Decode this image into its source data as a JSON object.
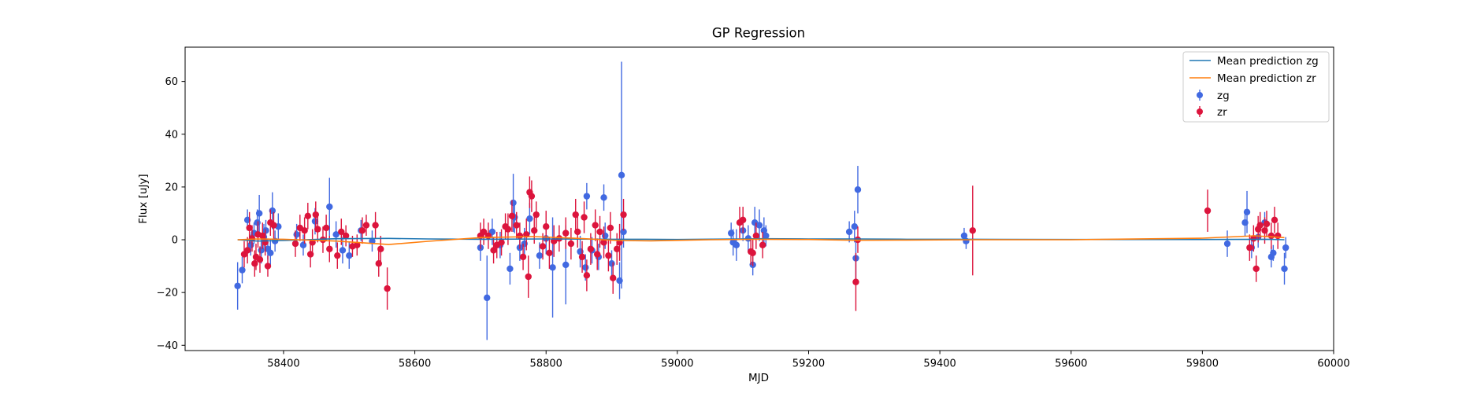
{
  "chart_data": {
    "type": "scatter",
    "title": "GP Regression",
    "xlabel": "MJD",
    "ylabel": "Flux [uJy]",
    "xlim": [
      58250,
      60000
    ],
    "ylim": [
      -42,
      73
    ],
    "xticks": [
      58400,
      58600,
      58800,
      59000,
      59200,
      59400,
      59600,
      59800,
      60000
    ],
    "xtick_labels": [
      "58400",
      "58600",
      "58800",
      "59000",
      "59200",
      "59400",
      "59600",
      "59800",
      "60000"
    ],
    "yticks": [
      -40,
      -20,
      0,
      20,
      40,
      60
    ],
    "ytick_labels": [
      "−40",
      "−20",
      "0",
      "20",
      "40",
      "60"
    ],
    "grid": false,
    "legend_position": "top-right",
    "series": [
      {
        "name": "Mean prediction zg",
        "kind": "line",
        "color": "#1f77b4",
        "x": [
          58330,
          58360,
          58400,
          58480,
          58560,
          58620,
          58700,
          58800,
          58900,
          58950,
          59000,
          59090,
          59130,
          59200,
          59270,
          59350,
          59440,
          59600,
          59800,
          59900,
          59925
        ],
        "y": [
          0,
          -0.5,
          -0.3,
          0.4,
          0.5,
          0.3,
          0.2,
          0.3,
          0.2,
          0.2,
          0.1,
          0.3,
          0.4,
          0.3,
          0.3,
          0.2,
          0.2,
          0.1,
          0.1,
          0.2,
          0
        ]
      },
      {
        "name": "Mean prediction zr",
        "kind": "line",
        "color": "#ff7f0e",
        "x": [
          58330,
          58360,
          58400,
          58480,
          58560,
          58620,
          58700,
          58780,
          58850,
          58910,
          58960,
          59050,
          59120,
          59200,
          59270,
          59350,
          59450,
          59600,
          59800,
          59880,
          59925
        ],
        "y": [
          0,
          0.3,
          0.2,
          -0.5,
          -1.8,
          -0.6,
          0.8,
          1.2,
          0.5,
          -0.3,
          -0.4,
          0,
          0.2,
          0.1,
          -0.2,
          -0.1,
          0,
          0,
          0.6,
          1.5,
          0.8
        ]
      },
      {
        "name": "zg",
        "kind": "errorbar",
        "color": "#4169e1",
        "points": [
          [
            58330,
            -17.5,
            9
          ],
          [
            58337,
            -11.5,
            5
          ],
          [
            58345,
            7.5,
            4
          ],
          [
            58350,
            -2.0,
            4
          ],
          [
            58355,
            2.5,
            4
          ],
          [
            58360,
            6.5,
            5
          ],
          [
            58363,
            10.0,
            7
          ],
          [
            58366,
            -4.0,
            5
          ],
          [
            58370,
            1.0,
            5
          ],
          [
            58373,
            3.5,
            4
          ],
          [
            58376,
            -3.5,
            4
          ],
          [
            58380,
            -5.0,
            5
          ],
          [
            58383,
            11.0,
            7
          ],
          [
            58387,
            -0.5,
            4
          ],
          [
            58392,
            5.0,
            5
          ],
          [
            58420,
            2.0,
            4
          ],
          [
            58430,
            -2.0,
            4
          ],
          [
            58448,
            7.0,
            5
          ],
          [
            58470,
            12.5,
            11
          ],
          [
            58480,
            2.0,
            5
          ],
          [
            58490,
            -4.0,
            5
          ],
          [
            58500,
            -6.0,
            5
          ],
          [
            58518,
            3.5,
            4
          ],
          [
            58535,
            -0.5,
            4
          ],
          [
            58700,
            -3.0,
            5
          ],
          [
            58710,
            -22.0,
            16
          ],
          [
            58718,
            3.0,
            5
          ],
          [
            58730,
            -2.0,
            5
          ],
          [
            58745,
            -11.0,
            6
          ],
          [
            58750,
            14.0,
            11
          ],
          [
            58752,
            8.5,
            6
          ],
          [
            58760,
            -3.0,
            5
          ],
          [
            58767,
            -1.5,
            6
          ],
          [
            58775,
            8.0,
            6
          ],
          [
            58790,
            -6.0,
            5
          ],
          [
            58800,
            0.5,
            6
          ],
          [
            58810,
            -10.5,
            19
          ],
          [
            58830,
            -9.5,
            15
          ],
          [
            58852,
            -4.5,
            6
          ],
          [
            58860,
            -10.5,
            5
          ],
          [
            58862,
            16.5,
            5
          ],
          [
            58870,
            -4.0,
            5
          ],
          [
            58880,
            -6.5,
            5
          ],
          [
            58888,
            16.0,
            5
          ],
          [
            58890,
            1.5,
            5
          ],
          [
            58900,
            -9.0,
            5
          ],
          [
            58912,
            -15.5,
            7
          ],
          [
            58915,
            24.5,
            43
          ],
          [
            58918,
            3.0,
            6
          ],
          [
            59082,
            2.5,
            4
          ],
          [
            59085,
            -1.0,
            5
          ],
          [
            59090,
            -2.0,
            6
          ],
          [
            59100,
            3.5,
            4
          ],
          [
            59108,
            0.5,
            5
          ],
          [
            59115,
            -9.5,
            4
          ],
          [
            59118,
            6.5,
            6
          ],
          [
            59125,
            5.5,
            6
          ],
          [
            59132,
            3.5,
            5
          ],
          [
            59135,
            1.5,
            4
          ],
          [
            59262,
            3.0,
            4
          ],
          [
            59270,
            5.0,
            6
          ],
          [
            59272,
            -7.0,
            8
          ],
          [
            59275,
            19.0,
            9
          ],
          [
            59437,
            1.5,
            3
          ],
          [
            59440,
            -0.5,
            3
          ],
          [
            59838,
            -1.5,
            5
          ],
          [
            59865,
            6.5,
            5
          ],
          [
            59868,
            10.5,
            8
          ],
          [
            59875,
            -3.0,
            4
          ],
          [
            59885,
            1.0,
            4
          ],
          [
            59895,
            6.5,
            4
          ],
          [
            59905,
            -6.5,
            4
          ],
          [
            59908,
            -5.0,
            3
          ],
          [
            59925,
            -11.0,
            6
          ],
          [
            59927,
            -3.0,
            4
          ]
        ]
      },
      {
        "name": "zr",
        "kind": "errorbar",
        "color": "#dc143c",
        "points": [
          [
            58340,
            -5.5,
            5
          ],
          [
            58345,
            -4.0,
            5
          ],
          [
            58348,
            4.5,
            6
          ],
          [
            58352,
            0.5,
            5
          ],
          [
            58356,
            -9.0,
            5
          ],
          [
            58358,
            -6.5,
            5
          ],
          [
            58361,
            2.0,
            5
          ],
          [
            58364,
            -7.5,
            5
          ],
          [
            58368,
            1.5,
            5
          ],
          [
            58372,
            -1.0,
            5
          ],
          [
            58376,
            -10.0,
            4
          ],
          [
            58380,
            6.5,
            5
          ],
          [
            58385,
            5.5,
            5
          ],
          [
            58418,
            -1.5,
            5
          ],
          [
            58425,
            4.5,
            5
          ],
          [
            58432,
            3.5,
            5
          ],
          [
            58437,
            9.0,
            5
          ],
          [
            58441,
            -5.5,
            5
          ],
          [
            58444,
            -1.0,
            5
          ],
          [
            58449,
            9.5,
            5
          ],
          [
            58452,
            4.0,
            5
          ],
          [
            58460,
            0.0,
            5
          ],
          [
            58465,
            4.5,
            5
          ],
          [
            58470,
            -3.5,
            5
          ],
          [
            58482,
            -6.0,
            5
          ],
          [
            58488,
            3.0,
            5
          ],
          [
            58495,
            1.5,
            4
          ],
          [
            58505,
            -2.5,
            4
          ],
          [
            58512,
            -2.0,
            4
          ],
          [
            58520,
            3.5,
            5
          ],
          [
            58526,
            5.5,
            4
          ],
          [
            58540,
            5.5,
            5
          ],
          [
            58545,
            -9.0,
            5
          ],
          [
            58548,
            -3.5,
            5
          ],
          [
            58558,
            -18.5,
            8
          ],
          [
            58700,
            1.5,
            5
          ],
          [
            58705,
            3.0,
            5
          ],
          [
            58712,
            1.5,
            5
          ],
          [
            58720,
            -4.0,
            5
          ],
          [
            58725,
            -2.0,
            5
          ],
          [
            58732,
            -1.0,
            5
          ],
          [
            58738,
            5.0,
            5
          ],
          [
            58742,
            4.0,
            6
          ],
          [
            58748,
            9.0,
            6
          ],
          [
            58755,
            5.5,
            5
          ],
          [
            58760,
            1.5,
            5
          ],
          [
            58765,
            -6.5,
            5
          ],
          [
            58770,
            2.0,
            6
          ],
          [
            58773,
            -14.0,
            8
          ],
          [
            58775,
            18.0,
            6
          ],
          [
            58778,
            16.5,
            6
          ],
          [
            58782,
            3.5,
            5
          ],
          [
            58785,
            9.5,
            5
          ],
          [
            58795,
            -2.5,
            5
          ],
          [
            58800,
            5.0,
            6
          ],
          [
            58805,
            -5.0,
            6
          ],
          [
            58812,
            -0.5,
            6
          ],
          [
            58820,
            0.5,
            5
          ],
          [
            58830,
            2.5,
            6
          ],
          [
            58838,
            -1.5,
            6
          ],
          [
            58845,
            9.5,
            6
          ],
          [
            58848,
            3.0,
            6
          ],
          [
            58855,
            -6.5,
            6
          ],
          [
            58858,
            8.5,
            6
          ],
          [
            58862,
            -13.5,
            6
          ],
          [
            58868,
            -3.5,
            6
          ],
          [
            58875,
            5.5,
            6
          ],
          [
            58878,
            -5.5,
            6
          ],
          [
            58882,
            3.0,
            6
          ],
          [
            58888,
            -1.0,
            6
          ],
          [
            58895,
            -6.0,
            6
          ],
          [
            58898,
            4.5,
            6
          ],
          [
            58902,
            -14.5,
            6
          ],
          [
            58908,
            -3.5,
            6
          ],
          [
            58912,
            -1.0,
            7
          ],
          [
            58918,
            9.5,
            6
          ],
          [
            59095,
            6.5,
            6
          ],
          [
            59100,
            7.5,
            5
          ],
          [
            59112,
            -4.5,
            5
          ],
          [
            59115,
            -5.0,
            5
          ],
          [
            59120,
            1.5,
            5
          ],
          [
            59130,
            -2.0,
            5
          ],
          [
            59272,
            -16.0,
            11
          ],
          [
            59275,
            0.0,
            5
          ],
          [
            59450,
            3.5,
            17
          ],
          [
            59808,
            11.0,
            8
          ],
          [
            59872,
            -3.0,
            5
          ],
          [
            59878,
            0.5,
            5
          ],
          [
            59882,
            -11.0,
            5
          ],
          [
            59885,
            4.0,
            5
          ],
          [
            59888,
            5.5,
            5
          ],
          [
            59895,
            3.5,
            5
          ],
          [
            59898,
            6.0,
            5
          ],
          [
            59905,
            1.5,
            5
          ],
          [
            59910,
            7.5,
            5
          ],
          [
            59915,
            1.5,
            5
          ]
        ]
      }
    ]
  }
}
